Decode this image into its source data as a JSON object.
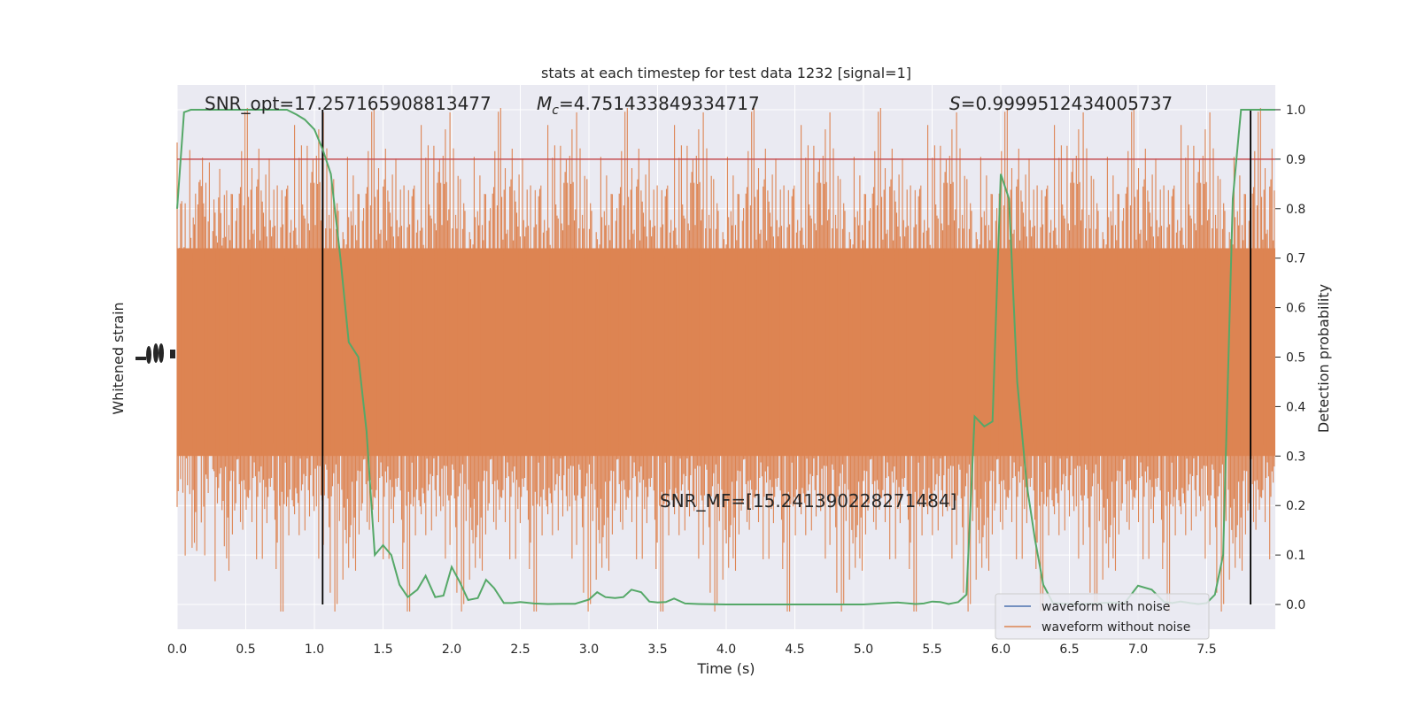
{
  "chart_data": {
    "type": "line",
    "title": "stats at each timestep for test data 1232 [signal=1]",
    "xlabel": "Time (s)",
    "ylabel_left": "Whitened strain",
    "ylabel_right": "Detection probability",
    "xlim": [
      0.0,
      8.0
    ],
    "ylim_right": [
      -0.05,
      1.05
    ],
    "x_ticks": [
      "0.0",
      "0.5",
      "1.0",
      "1.5",
      "2.0",
      "2.5",
      "3.0",
      "3.5",
      "4.0",
      "4.5",
      "5.0",
      "5.5",
      "6.0",
      "6.5",
      "7.0",
      "7.5"
    ],
    "y_right_ticks": [
      "0.0",
      "0.1",
      "0.2",
      "0.3",
      "0.4",
      "0.5",
      "0.6",
      "0.7",
      "0.8",
      "0.9",
      "1.0"
    ],
    "grid": true,
    "legend_position": "lower-right",
    "colors": {
      "background": "#eaeaf2",
      "grid": "#ffffff",
      "noise_waveform": "#4c72b0",
      "clean_waveform": "#dd8452",
      "probability": "#55a868",
      "threshold": "#c44e52",
      "markers": "#000000"
    },
    "annotations": {
      "snr_opt": "SNR_opt=17.257165908813477",
      "mc_symbol": "M",
      "mc_subscript": "c",
      "mc_value": "=4.751433849334717",
      "s_symbol": "S",
      "s_value": "=0.9999512434005737",
      "snr_mf": "SNR_MF=[15.241390228271484]"
    },
    "threshold": 0.9,
    "vertical_markers": [
      1.06,
      7.82
    ],
    "series": [
      {
        "name": "waveform with noise",
        "axis": "left",
        "note_values": "noise-dominated strain, drawn as dense band"
      },
      {
        "name": "waveform without noise",
        "axis": "left"
      },
      {
        "axis": "right",
        "x": [
          0.0,
          0.05,
          0.1,
          0.2,
          0.3,
          0.4,
          0.5,
          0.6,
          0.7,
          0.8,
          0.87,
          0.93,
          1.0,
          1.06,
          1.12,
          1.19,
          1.25,
          1.32,
          1.38,
          1.44,
          1.5,
          1.56,
          1.62,
          1.68,
          1.75,
          1.81,
          1.88,
          1.94,
          2.0,
          2.06,
          2.12,
          2.19,
          2.25,
          2.31,
          2.38,
          2.44,
          2.5,
          2.6,
          2.7,
          2.8,
          2.9,
          3.0,
          3.06,
          3.12,
          3.19,
          3.25,
          3.31,
          3.38,
          3.44,
          3.5,
          3.56,
          3.62,
          3.7,
          3.8,
          3.9,
          4.0,
          4.5,
          5.0,
          5.12,
          5.25,
          5.38,
          5.44,
          5.5,
          5.56,
          5.62,
          5.69,
          5.75,
          5.81,
          5.88,
          5.94,
          6.0,
          6.06,
          6.12,
          6.19,
          6.25,
          6.31,
          6.38,
          6.44,
          6.5,
          6.6,
          6.7,
          6.8,
          6.9,
          7.0,
          7.1,
          7.19,
          7.25,
          7.31,
          7.38,
          7.44,
          7.5,
          7.56,
          7.62,
          7.69,
          7.75,
          7.81,
          7.88,
          7.94,
          8.0
        ],
        "values": [
          0.8,
          0.995,
          1.0,
          1.0,
          1.0,
          1.0,
          1.0,
          1.0,
          1.0,
          1.0,
          0.99,
          0.98,
          0.96,
          0.92,
          0.87,
          0.7,
          0.53,
          0.5,
          0.35,
          0.1,
          0.12,
          0.1,
          0.04,
          0.015,
          0.03,
          0.058,
          0.015,
          0.018,
          0.076,
          0.045,
          0.009,
          0.013,
          0.05,
          0.033,
          0.003,
          0.003,
          0.005,
          0.002,
          0.001,
          0.0015,
          0.0015,
          0.01,
          0.025,
          0.015,
          0.013,
          0.015,
          0.03,
          0.025,
          0.006,
          0.004,
          0.005,
          0.012,
          0.002,
          0.001,
          0.0005,
          0.0,
          0.0,
          0.0,
          0.002,
          0.004,
          0.001,
          0.002,
          0.006,
          0.005,
          0.001,
          0.005,
          0.02,
          0.38,
          0.36,
          0.37,
          0.87,
          0.82,
          0.45,
          0.24,
          0.13,
          0.04,
          0.003,
          0.002,
          0.001,
          0.001,
          0.002,
          0.004,
          0.002,
          0.038,
          0.03,
          0.005,
          0.003,
          0.006,
          0.003,
          0.001,
          0.003,
          0.02,
          0.1,
          0.82,
          1.0,
          1.0,
          1.0,
          1.0,
          1.0
        ]
      }
    ]
  }
}
